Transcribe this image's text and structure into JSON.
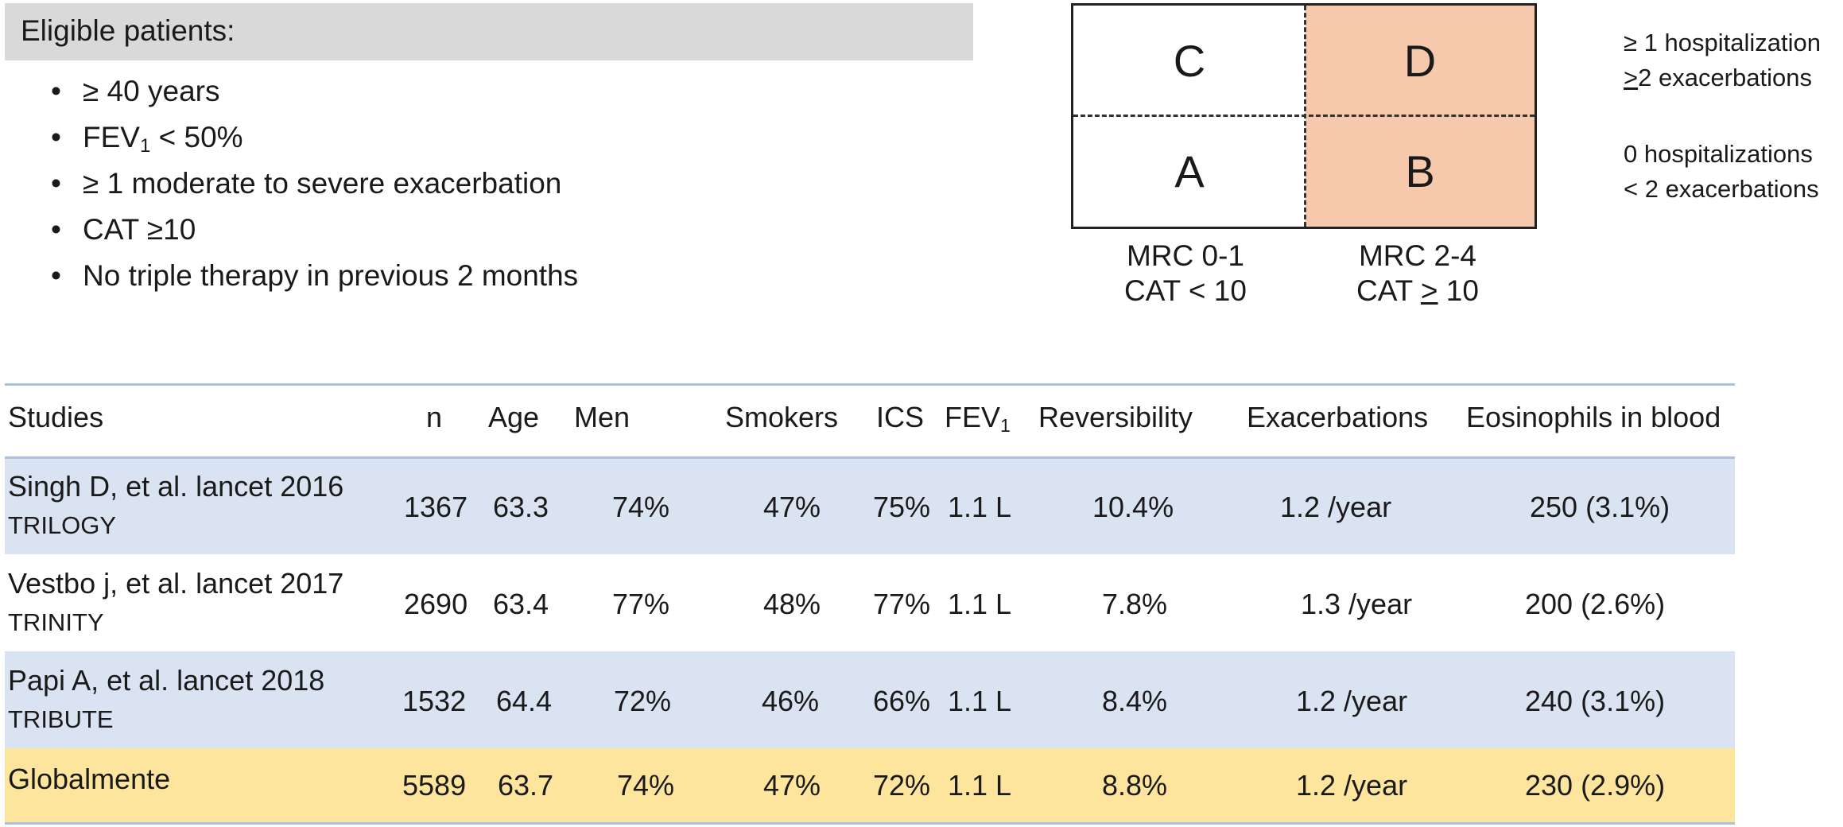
{
  "eligible": {
    "title": "Eligible patients:",
    "items": [
      {
        "text": "≥ 40 years"
      },
      {
        "text": "FEV",
        "sub": "1",
        "suffix": " < 50%"
      },
      {
        "text": "≥ 1 moderate to severe exacerbation"
      },
      {
        "text": "CAT ≥10"
      },
      {
        "text": "No triple therapy in previous 2 months"
      }
    ]
  },
  "gold_grid": {
    "quadrants": {
      "top_left": "C",
      "top_right": "D",
      "bottom_left": "A",
      "bottom_right": "B"
    },
    "row_labels": {
      "top": {
        "line1": "≥ 1 hospitalization",
        "line2_prefix": ">",
        "line2_rest": "2 exacerbations"
      },
      "bottom": {
        "line1": "0 hospitalizations",
        "line2": "< 2 exacerbations"
      }
    },
    "col_labels": {
      "left": {
        "line1": "MRC 0-1",
        "line2": "CAT < 10"
      },
      "right": {
        "line1": "MRC 2-4",
        "line2_prefix": "CAT ",
        "line2_sym": ">",
        "line2_suffix": " 10"
      }
    },
    "colors": {
      "shaded": "#f6c9ad",
      "border": "#222222"
    }
  },
  "table": {
    "headers": {
      "studies": "Studies",
      "n": "n",
      "age": "Age",
      "men": "Men",
      "smokers": "Smokers",
      "ics": "ICS",
      "fev": "FEV",
      "fev_sub": "1",
      "reversibility": "Reversibility",
      "exacerbations": "Exacerbations",
      "eosinophils": "Eosinophils in blood"
    },
    "rows": [
      {
        "name": "Singh D, et al. lancet 2016",
        "trial": "TRILOGY",
        "n": "1367",
        "age": "63.3",
        "men": "74%",
        "smokers": "47%",
        "ics": "75%",
        "fev": "1.1 L",
        "reversibility": "10.4%",
        "exacerbations": "1.2 /year",
        "eosinophils": "250 (3.1%)"
      },
      {
        "name": "Vestbo j, et al. lancet 2017",
        "trial": "TRINITY",
        "n": "2690",
        "age": "63.4",
        "men": "77%",
        "smokers": "48%",
        "ics": "77%",
        "fev": "1.1 L",
        "reversibility": "7.8%",
        "exacerbations": "1.3 /year",
        "eosinophils": "200 (2.6%)"
      },
      {
        "name": "Papi A, et al. lancet 2018",
        "trial": "TRIBUTE",
        "n": "1532",
        "age": "64.4",
        "men": "72%",
        "smokers": "46%",
        "ics": "66%",
        "fev": "1.1 L",
        "reversibility": "8.4%",
        "exacerbations": "1.2 /year",
        "eosinophils": "240 (3.1%)"
      }
    ],
    "total": {
      "name": "Globalmente",
      "n": "5589",
      "age": "63.7",
      "men": "74%",
      "smokers": "47%",
      "ics": "72%",
      "fev": "1.1 L",
      "reversibility": "8.8%",
      "exacerbations": "1.2 /year",
      "eosinophils": "230 (2.9%)"
    },
    "colors": {
      "row_blue": "#dae3f2",
      "row_yellow": "#fde59e",
      "rule": "#aac1e0"
    }
  }
}
